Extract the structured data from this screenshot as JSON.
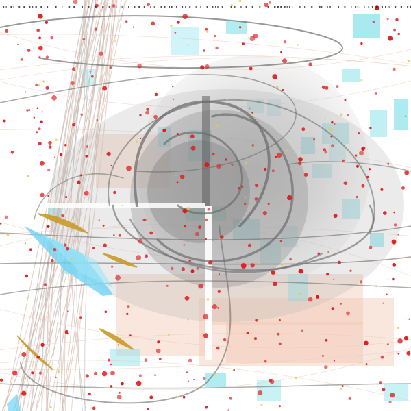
{
  "artwork": {
    "background": "#ffffff",
    "palette": {
      "dots": "#e01818",
      "accent_dots": "#e8c840",
      "cyan": "#7fe0e8",
      "sky": "#6fd3f2",
      "peach": "#f2c8b4",
      "gray": "#6e6e6e",
      "gold": "#c89b2a",
      "mint": "#a0f0d8"
    },
    "motifs": [
      "concentric-gray-discs",
      "looping-gray-strokes",
      "vertical-thread-bundle",
      "scattered-red-dots",
      "cyan-pixel-blocks",
      "peach-panels",
      "gold-leaf-strokes",
      "black-dotted-top-border"
    ]
  }
}
